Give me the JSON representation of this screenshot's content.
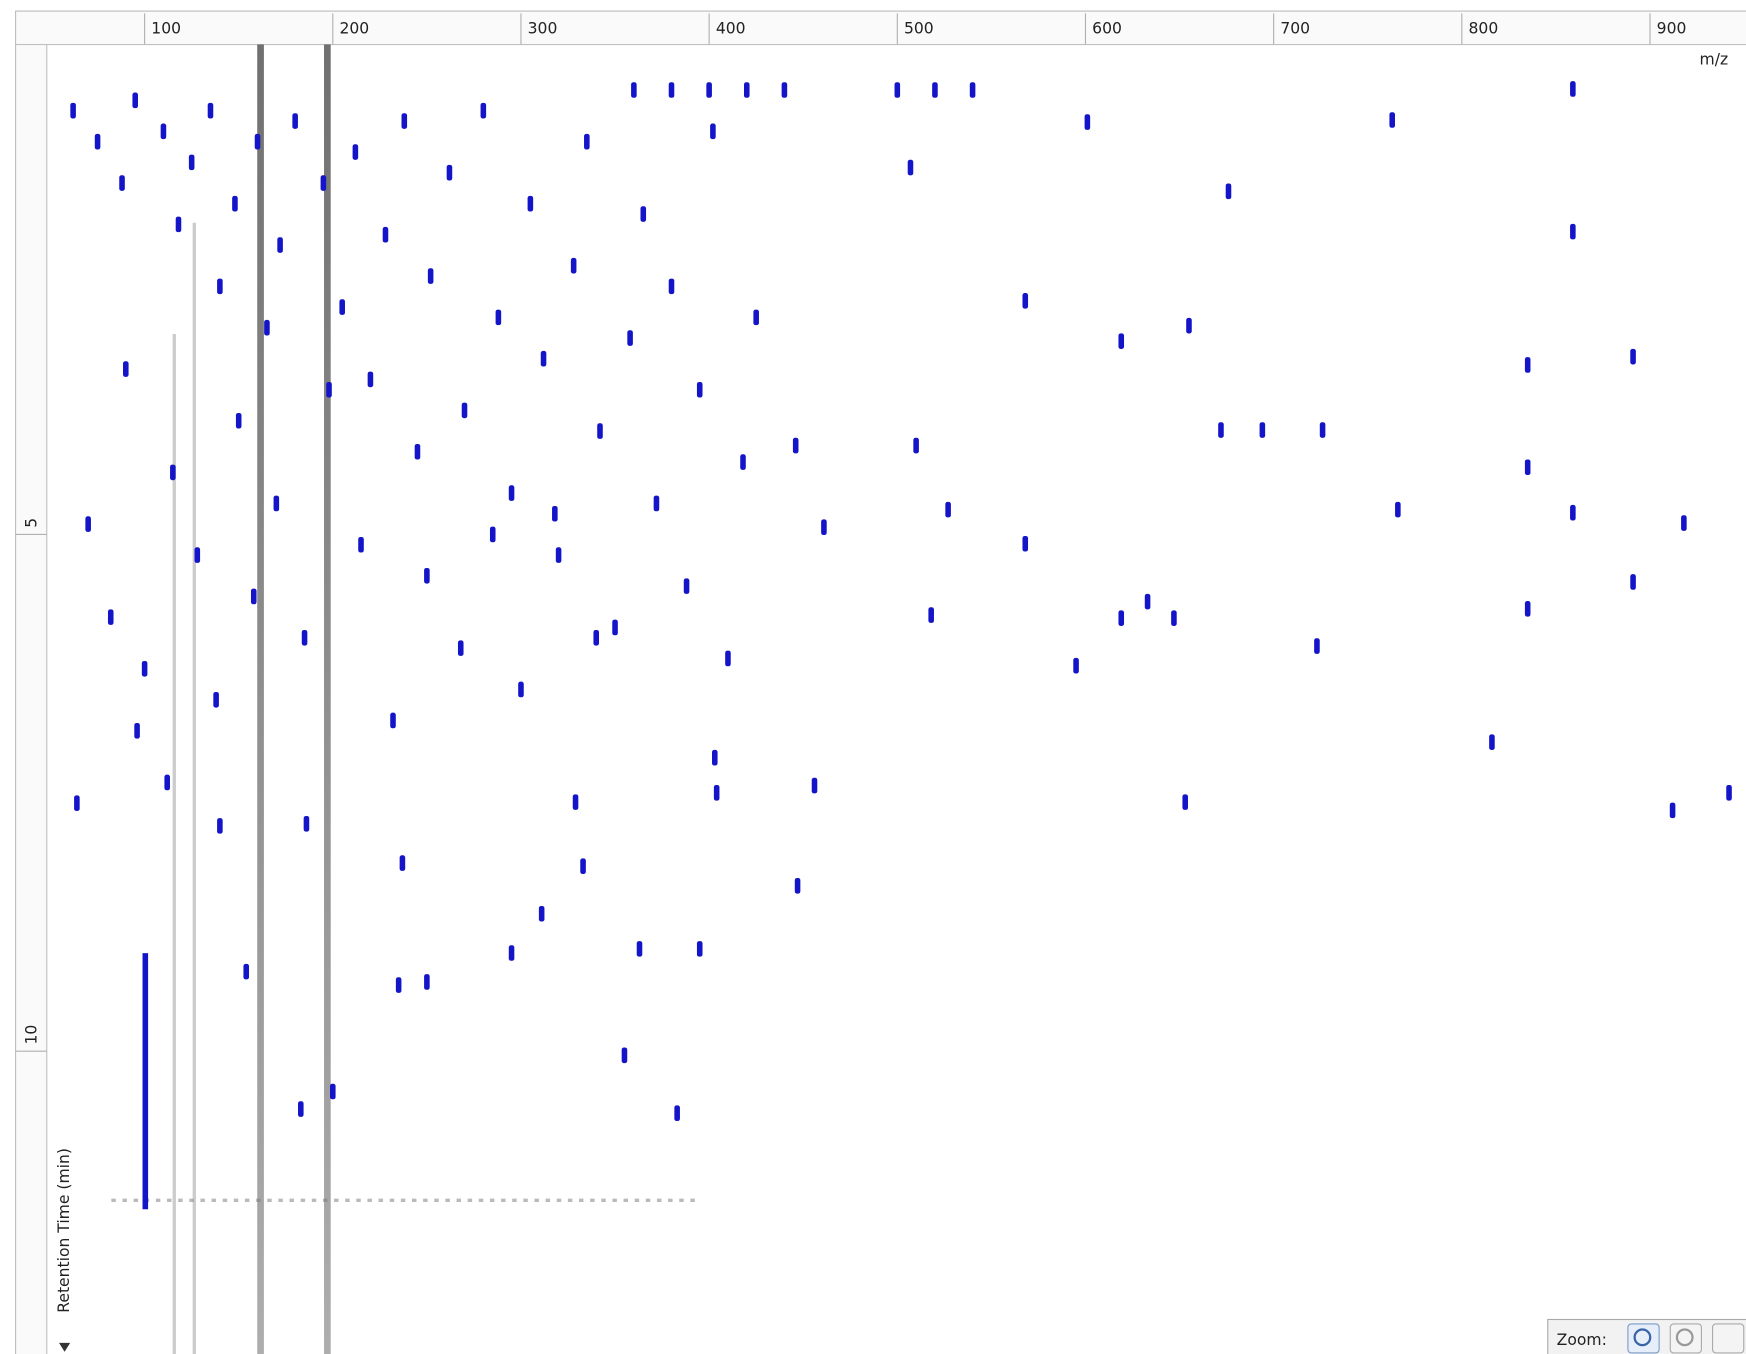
{
  "chart_data": {
    "type": "scatter",
    "x_label": "m/z",
    "y_label": "Retention Time (min)",
    "xlim": [
      48,
      951
    ],
    "ylim": [
      0.26,
      12.93
    ],
    "xticks": [
      100,
      200,
      300,
      400,
      500,
      600,
      700,
      800,
      900
    ],
    "yticks": [
      5,
      10
    ],
    "color": "#1414c8",
    "x": [
      859,
      763,
      601,
      507,
      676,
      859,
      891,
      835,
      619,
      655,
      568,
      835,
      918,
      859,
      891,
      835,
      723,
      816,
      942,
      912,
      653,
      595,
      766,
      672,
      694,
      726,
      510,
      527,
      568,
      633,
      647,
      619,
      518,
      446,
      461,
      403,
      404,
      329,
      311,
      295,
      235,
      250,
      363,
      395,
      355,
      383,
      447,
      456,
      333,
      200,
      183,
      140,
      186,
      237,
      154,
      62,
      75,
      88,
      95,
      110,
      118,
      125,
      135,
      140,
      148,
      160,
      165,
      172,
      180,
      195,
      205,
      212,
      220,
      228,
      238,
      245,
      252,
      262,
      270,
      280,
      288,
      295,
      305,
      312,
      320,
      328,
      335,
      342,
      350,
      358,
      365,
      372,
      380,
      388,
      395,
      402,
      410,
      418,
      425,
      70,
      82,
      90,
      100,
      115,
      128,
      138,
      150,
      158,
      170,
      185,
      198,
      215,
      232,
      250,
      268,
      285,
      300,
      318,
      340,
      360,
      380,
      400,
      420,
      440,
      500,
      520,
      540,
      64,
      96,
      112
    ],
    "y": [
      0.69,
      0.99,
      1.01,
      1.45,
      1.68,
      2.07,
      3.28,
      3.36,
      3.13,
      2.98,
      2.74,
      4.35,
      4.89,
      4.79,
      5.46,
      5.72,
      6.08,
      7.01,
      7.5,
      7.67,
      7.59,
      6.27,
      4.76,
      3.99,
      3.99,
      3.99,
      4.14,
      4.76,
      5.09,
      5.65,
      5.81,
      5.81,
      5.78,
      4.14,
      4.93,
      7.16,
      7.5,
      7.59,
      8.67,
      9.05,
      9.36,
      9.33,
      9.01,
      9.01,
      10.04,
      10.6,
      8.4,
      7.43,
      8.21,
      10.39,
      10.56,
      7.82,
      7.8,
      8.18,
      9.23,
      0.9,
      1.2,
      1.6,
      0.8,
      1.1,
      2.0,
      1.4,
      0.9,
      2.6,
      1.8,
      1.2,
      3.0,
      2.2,
      1.0,
      1.6,
      2.8,
      1.3,
      3.5,
      2.1,
      1.0,
      4.2,
      2.5,
      1.5,
      3.8,
      0.9,
      2.9,
      4.6,
      1.8,
      3.3,
      5.2,
      2.4,
      1.2,
      4.0,
      5.9,
      3.1,
      1.9,
      4.7,
      2.6,
      5.5,
      3.6,
      1.1,
      6.2,
      4.3,
      2.9,
      4.9,
      5.8,
      3.4,
      6.3,
      4.4,
      5.2,
      6.6,
      3.9,
      5.6,
      4.7,
      6.0,
      3.6,
      5.1,
      6.8,
      5.4,
      6.1,
      5.0,
      6.5,
      4.8,
      6.0,
      0.7,
      0.7,
      0.7,
      0.7,
      0.7,
      0.7,
      0.7,
      0.7,
      7.6,
      6.9,
      7.4
    ]
  },
  "ui": {
    "zoom_label": "Zoom:"
  }
}
